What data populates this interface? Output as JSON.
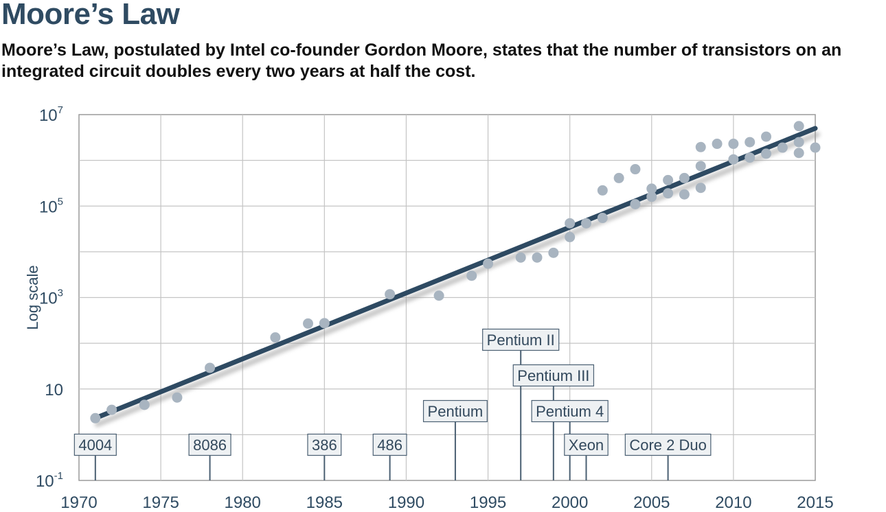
{
  "title": "Moore’s Law",
  "subtitle": "Moore’s Law, postulated by Intel co-founder Gordon Moore, states that the number of transistors on an integrated circuit doubles every two years at half the cost.",
  "colors": {
    "trend_line": "#2e4a62",
    "points": "#a8b4c0",
    "grid": "#c4c4c4",
    "axis_text": "#2f4b62",
    "label_box": "#eef1f3"
  },
  "chart_data": {
    "type": "scatter",
    "ylabel": "Log scale",
    "xlim": [
      1970,
      2015
    ],
    "ylim": [
      0.1,
      10000000
    ],
    "y_scale": "log",
    "grid": true,
    "x_ticks": [
      {
        "value": 1970,
        "label": "1970"
      },
      {
        "value": 1975,
        "label": "1975"
      },
      {
        "value": 1980,
        "label": "1980"
      },
      {
        "value": 1985,
        "label": "1985"
      },
      {
        "value": 1990,
        "label": "1990"
      },
      {
        "value": 1995,
        "label": "1995"
      },
      {
        "value": 2000,
        "label": "2000"
      },
      {
        "value": 2005,
        "label": "2005"
      },
      {
        "value": 2010,
        "label": "2010"
      },
      {
        "value": 2015,
        "label": "2015"
      }
    ],
    "y_ticks": [
      {
        "value": 0.1,
        "base": "10",
        "exp": "-1"
      },
      {
        "value": 10,
        "base": "10",
        "exp": ""
      },
      {
        "value": 1000,
        "base": "10",
        "exp": "3"
      },
      {
        "value": 100000,
        "base": "10",
        "exp": "5"
      },
      {
        "value": 10000000,
        "base": "10",
        "exp": "7"
      }
    ],
    "y_gridlines": [
      1,
      100,
      10000,
      1000000
    ],
    "trend_line": {
      "x": [
        1971,
        2015
      ],
      "y": [
        2.3,
        5000000
      ]
    },
    "points": [
      {
        "x": 1971,
        "y": 2.3
      },
      {
        "x": 1972,
        "y": 3.5
      },
      {
        "x": 1974,
        "y": 4.5
      },
      {
        "x": 1976,
        "y": 6.5
      },
      {
        "x": 1978,
        "y": 29
      },
      {
        "x": 1982,
        "y": 134
      },
      {
        "x": 1984,
        "y": 270
      },
      {
        "x": 1985,
        "y": 275
      },
      {
        "x": 1989,
        "y": 1180
      },
      {
        "x": 1992,
        "y": 1100
      },
      {
        "x": 1994,
        "y": 3000
      },
      {
        "x": 1995,
        "y": 5500
      },
      {
        "x": 1997,
        "y": 7500
      },
      {
        "x": 1998,
        "y": 7500
      },
      {
        "x": 1999,
        "y": 9500
      },
      {
        "x": 2000,
        "y": 42000
      },
      {
        "x": 2000,
        "y": 21000
      },
      {
        "x": 2001,
        "y": 42000
      },
      {
        "x": 2002,
        "y": 55000
      },
      {
        "x": 2002,
        "y": 220000
      },
      {
        "x": 2003,
        "y": 410000
      },
      {
        "x": 2004,
        "y": 640000
      },
      {
        "x": 2004,
        "y": 110000
      },
      {
        "x": 2005,
        "y": 240000
      },
      {
        "x": 2005,
        "y": 160000
      },
      {
        "x": 2006,
        "y": 370000
      },
      {
        "x": 2006,
        "y": 190000
      },
      {
        "x": 2007,
        "y": 410000
      },
      {
        "x": 2007,
        "y": 180000
      },
      {
        "x": 2008,
        "y": 1950000
      },
      {
        "x": 2008,
        "y": 750000
      },
      {
        "x": 2008,
        "y": 250000
      },
      {
        "x": 2009,
        "y": 2300000
      },
      {
        "x": 2010,
        "y": 2300000
      },
      {
        "x": 2010,
        "y": 1050000
      },
      {
        "x": 2011,
        "y": 2500000
      },
      {
        "x": 2011,
        "y": 1150000
      },
      {
        "x": 2012,
        "y": 3300000
      },
      {
        "x": 2012,
        "y": 1400000
      },
      {
        "x": 2013,
        "y": 1900000
      },
      {
        "x": 2014,
        "y": 5600000
      },
      {
        "x": 2014,
        "y": 2500000
      },
      {
        "x": 2014,
        "y": 1450000
      },
      {
        "x": 2015,
        "y": 1900000
      }
    ],
    "annotations": [
      {
        "label": "4004",
        "x": 1971,
        "level": 1
      },
      {
        "label": "8086",
        "x": 1978,
        "level": 1
      },
      {
        "label": "386",
        "x": 1985,
        "level": 1
      },
      {
        "label": "486",
        "x": 1989,
        "level": 1
      },
      {
        "label": "Pentium",
        "x": 1993,
        "level": 2
      },
      {
        "label": "Pentium II",
        "x": 1997,
        "level": 4
      },
      {
        "label": "Pentium III",
        "x": 1999,
        "level": 3
      },
      {
        "label": "Pentium 4",
        "x": 2000,
        "level": 2
      },
      {
        "label": "Xeon",
        "x": 2001,
        "level": 1
      },
      {
        "label": "Core 2 Duo",
        "x": 2006,
        "level": 1
      }
    ]
  }
}
